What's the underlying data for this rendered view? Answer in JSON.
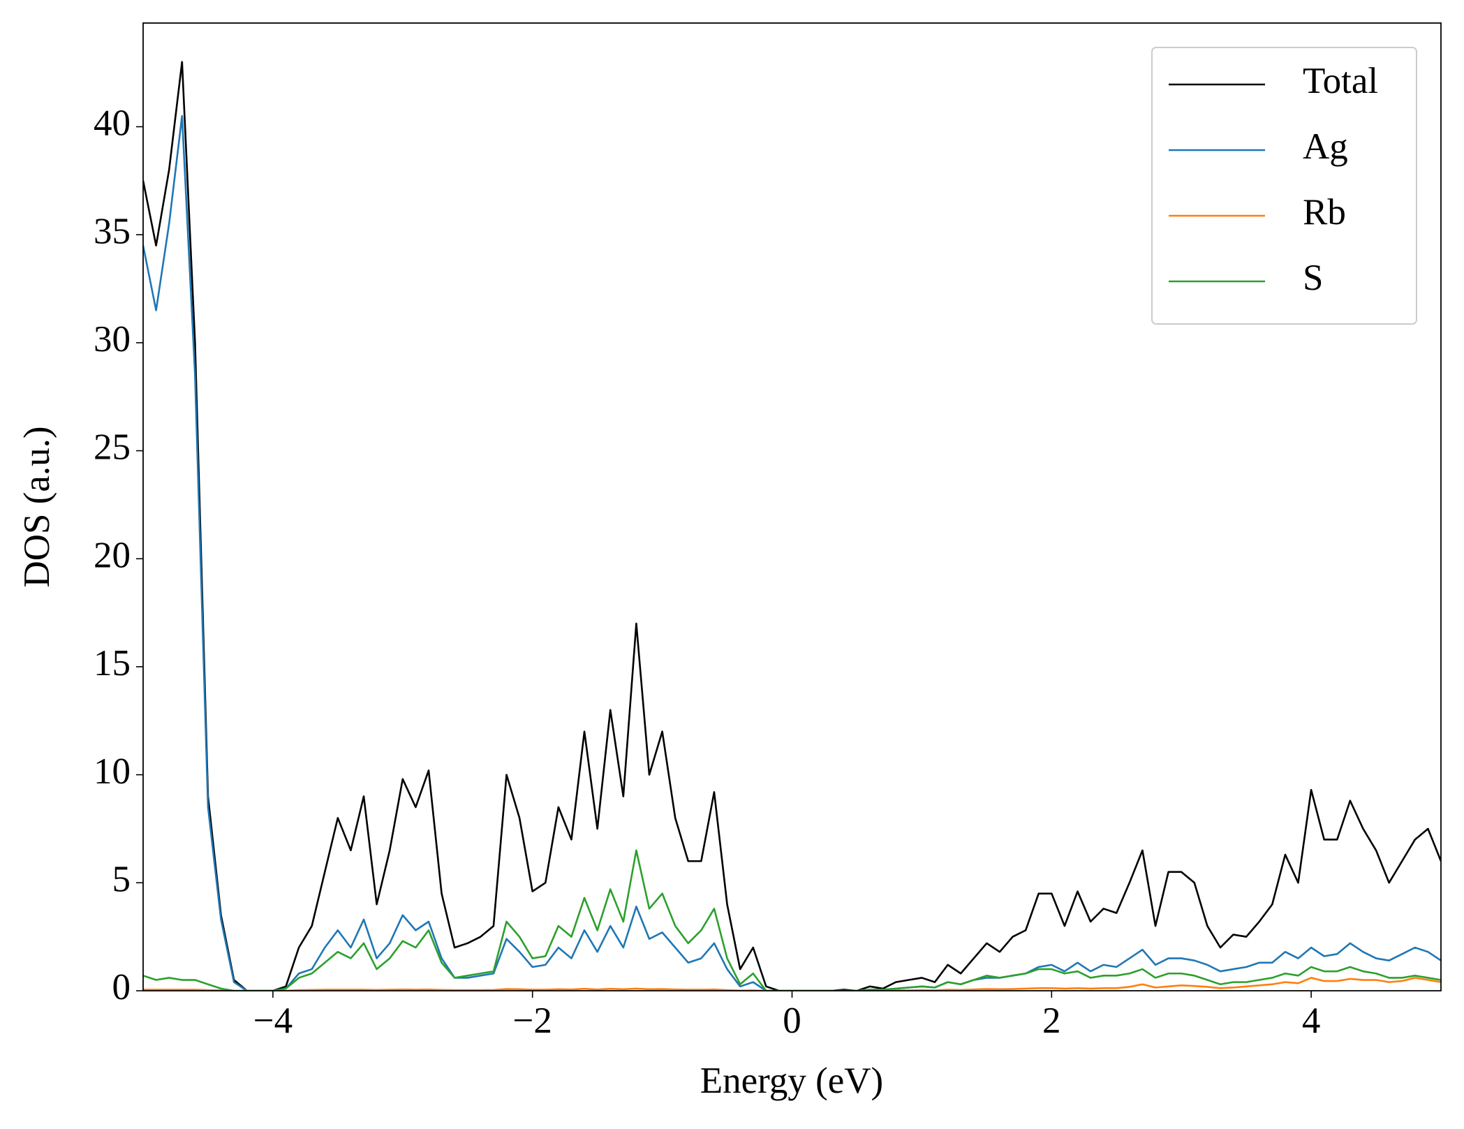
{
  "chart_data": {
    "type": "line",
    "xlabel": "Energy (eV)",
    "ylabel": "DOS (a.u.)",
    "x": [
      -5.0,
      -4.9,
      -4.8,
      -4.7,
      -4.6,
      -4.5,
      -4.4,
      -4.3,
      -4.2,
      -4.1,
      -4.0,
      -3.9,
      -3.8,
      -3.7,
      -3.6,
      -3.5,
      -3.4,
      -3.3,
      -3.2,
      -3.1,
      -3.0,
      -2.9,
      -2.8,
      -2.7,
      -2.6,
      -2.5,
      -2.4,
      -2.3,
      -2.2,
      -2.1,
      -2.0,
      -1.9,
      -1.8,
      -1.7,
      -1.6,
      -1.5,
      -1.4,
      -1.3,
      -1.2,
      -1.1,
      -1.0,
      -0.9,
      -0.8,
      -0.7,
      -0.6,
      -0.5,
      -0.4,
      -0.3,
      -0.2,
      -0.1,
      0.0,
      0.1,
      0.2,
      0.3,
      0.4,
      0.5,
      0.6,
      0.7,
      0.8,
      0.9,
      1.0,
      1.1,
      1.2,
      1.3,
      1.4,
      1.5,
      1.6,
      1.7,
      1.8,
      1.9,
      2.0,
      2.1,
      2.2,
      2.3,
      2.4,
      2.5,
      2.6,
      2.7,
      2.8,
      2.9,
      3.0,
      3.1,
      3.2,
      3.3,
      3.4,
      3.5,
      3.6,
      3.7,
      3.8,
      3.9,
      4.0,
      4.1,
      4.2,
      4.3,
      4.4,
      4.5,
      4.6,
      4.7,
      4.8,
      4.9,
      5.0
    ],
    "series": [
      {
        "name": "Total",
        "color": "#000000",
        "values": [
          37.5,
          34.5,
          38,
          43,
          30,
          9,
          3.5,
          0.5,
          0,
          0,
          0,
          0.2,
          2,
          3,
          5.5,
          8,
          6.5,
          9,
          4,
          6.5,
          9.8,
          8.5,
          10.2,
          4.5,
          2,
          2.2,
          2.5,
          3,
          10,
          8,
          4.6,
          5,
          8.5,
          7,
          12,
          7.5,
          13,
          9,
          17,
          10,
          12,
          8,
          6,
          6,
          9.2,
          4,
          1,
          2,
          0.2,
          0,
          0,
          0,
          0,
          0,
          0.05,
          0,
          0.2,
          0.1,
          0.4,
          0.5,
          0.6,
          0.4,
          1.2,
          0.8,
          1.5,
          2.2,
          1.8,
          2.5,
          2.8,
          4.5,
          4.5,
          3,
          4.6,
          3.2,
          3.8,
          3.6,
          5,
          6.5,
          3,
          5.5,
          5.5,
          5,
          3,
          2,
          2.6,
          2.5,
          3.2,
          4,
          6.3,
          5,
          9.3,
          7,
          7,
          8.8,
          7.5,
          6.5,
          5,
          6,
          7,
          7.5,
          6
        ]
      },
      {
        "name": "Ag",
        "color": "#1f77b4",
        "values": [
          34.5,
          31.5,
          35.5,
          40.5,
          28.5,
          8.5,
          3.3,
          0.4,
          0,
          0,
          0,
          0.1,
          0.8,
          1,
          2,
          2.8,
          2,
          3.3,
          1.5,
          2.2,
          3.5,
          2.8,
          3.2,
          1.5,
          0.6,
          0.6,
          0.7,
          0.8,
          2.4,
          1.8,
          1.1,
          1.2,
          2,
          1.5,
          2.8,
          1.8,
          3,
          2,
          3.9,
          2.4,
          2.7,
          2,
          1.3,
          1.5,
          2.2,
          1,
          0.2,
          0.4,
          0,
          0,
          0,
          0,
          0,
          0,
          0,
          0,
          0.05,
          0.05,
          0.1,
          0.15,
          0.2,
          0.15,
          0.4,
          0.3,
          0.5,
          0.6,
          0.6,
          0.7,
          0.8,
          1.1,
          1.2,
          0.9,
          1.3,
          0.9,
          1.2,
          1.1,
          1.5,
          1.9,
          1.2,
          1.5,
          1.5,
          1.4,
          1.2,
          0.9,
          1.0,
          1.1,
          1.3,
          1.3,
          1.8,
          1.5,
          2,
          1.6,
          1.7,
          2.2,
          1.8,
          1.5,
          1.4,
          1.7,
          2,
          1.8,
          1.4
        ]
      },
      {
        "name": "Rb",
        "color": "#ff7f0e",
        "values": [
          0.05,
          0.05,
          0.05,
          0.05,
          0.05,
          0.03,
          0.02,
          0,
          0,
          0,
          0,
          0,
          0.03,
          0.04,
          0.05,
          0.05,
          0.05,
          0.05,
          0.04,
          0.05,
          0.06,
          0.05,
          0.06,
          0.04,
          0.03,
          0.03,
          0.03,
          0.04,
          0.08,
          0.07,
          0.05,
          0.05,
          0.07,
          0.06,
          0.09,
          0.06,
          0.09,
          0.07,
          0.1,
          0.07,
          0.08,
          0.06,
          0.05,
          0.05,
          0.06,
          0.03,
          0.01,
          0.02,
          0,
          0,
          0,
          0,
          0,
          0,
          0,
          0,
          0.01,
          0.01,
          0.02,
          0.02,
          0.03,
          0.02,
          0.05,
          0.04,
          0.06,
          0.08,
          0.07,
          0.08,
          0.1,
          0.12,
          0.12,
          0.1,
          0.12,
          0.1,
          0.12,
          0.12,
          0.18,
          0.3,
          0.15,
          0.2,
          0.25,
          0.22,
          0.18,
          0.12,
          0.15,
          0.2,
          0.25,
          0.3,
          0.4,
          0.35,
          0.6,
          0.45,
          0.45,
          0.55,
          0.5,
          0.5,
          0.4,
          0.45,
          0.6,
          0.5,
          0.4
        ]
      },
      {
        "name": "S",
        "color": "#2ca02c",
        "values": [
          0.7,
          0.5,
          0.6,
          0.5,
          0.5,
          0.3,
          0.1,
          0,
          0,
          0,
          0,
          0.1,
          0.6,
          0.8,
          1.3,
          1.8,
          1.5,
          2.2,
          1,
          1.5,
          2.3,
          2,
          2.8,
          1.3,
          0.6,
          0.7,
          0.8,
          0.9,
          3.2,
          2.5,
          1.5,
          1.6,
          3,
          2.5,
          4.3,
          2.8,
          4.7,
          3.2,
          6.5,
          3.8,
          4.5,
          3,
          2.2,
          2.8,
          3.8,
          1.5,
          0.3,
          0.8,
          0,
          0,
          0,
          0,
          0,
          0,
          0,
          0,
          0.05,
          0.05,
          0.1,
          0.15,
          0.2,
          0.15,
          0.4,
          0.3,
          0.5,
          0.7,
          0.6,
          0.7,
          0.8,
          1.0,
          1.0,
          0.8,
          0.9,
          0.6,
          0.7,
          0.7,
          0.8,
          1.0,
          0.6,
          0.8,
          0.8,
          0.7,
          0.5,
          0.3,
          0.4,
          0.4,
          0.5,
          0.6,
          0.8,
          0.7,
          1.1,
          0.9,
          0.9,
          1.1,
          0.9,
          0.8,
          0.6,
          0.6,
          0.7,
          0.6,
          0.5
        ]
      }
    ],
    "xlim": [
      -5,
      5
    ],
    "ylim": [
      0,
      44.8
    ],
    "xticks": [
      {
        "value": -4,
        "label": "−4"
      },
      {
        "value": -2,
        "label": "−2"
      },
      0,
      2,
      4
    ],
    "yticks": [
      0,
      5,
      10,
      15,
      20,
      25,
      30,
      35,
      40
    ],
    "legend": "upper right",
    "grid": false
  }
}
